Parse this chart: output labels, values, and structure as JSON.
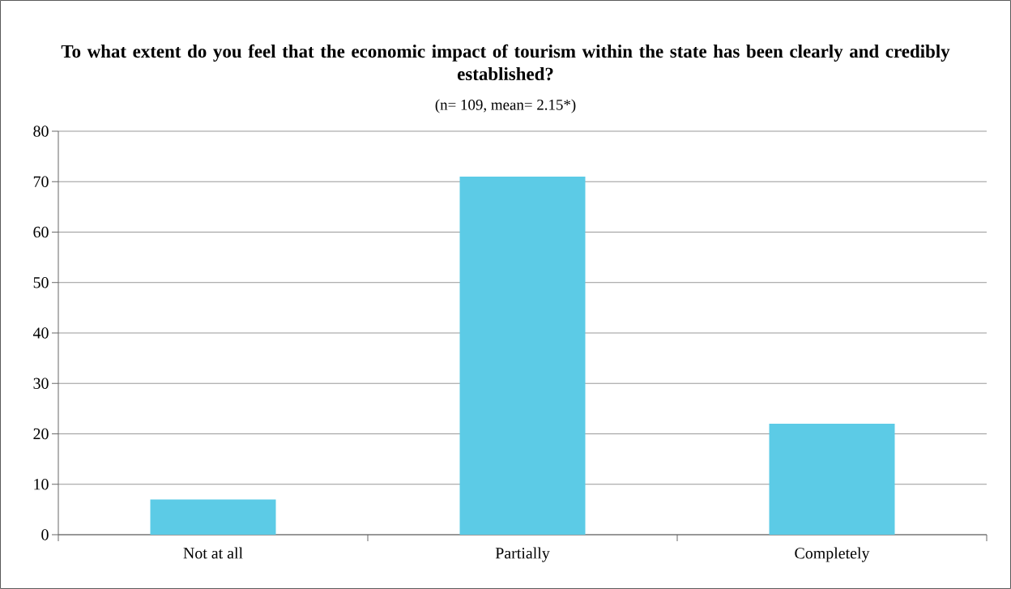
{
  "chart_data": {
    "type": "bar",
    "title": "To what extent do you feel that the economic impact of tourism within the state has been clearly and credibly established?",
    "subtitle": "(n= 109, mean= 2.15*)",
    "categories": [
      "Not at all",
      "Partially",
      "Completely"
    ],
    "values": [
      7,
      71,
      22
    ],
    "color": "#5ccbe6",
    "ylim": [
      0,
      80
    ],
    "yticks": [
      0,
      10,
      20,
      30,
      40,
      50,
      60,
      70,
      80
    ],
    "grid": "y"
  }
}
